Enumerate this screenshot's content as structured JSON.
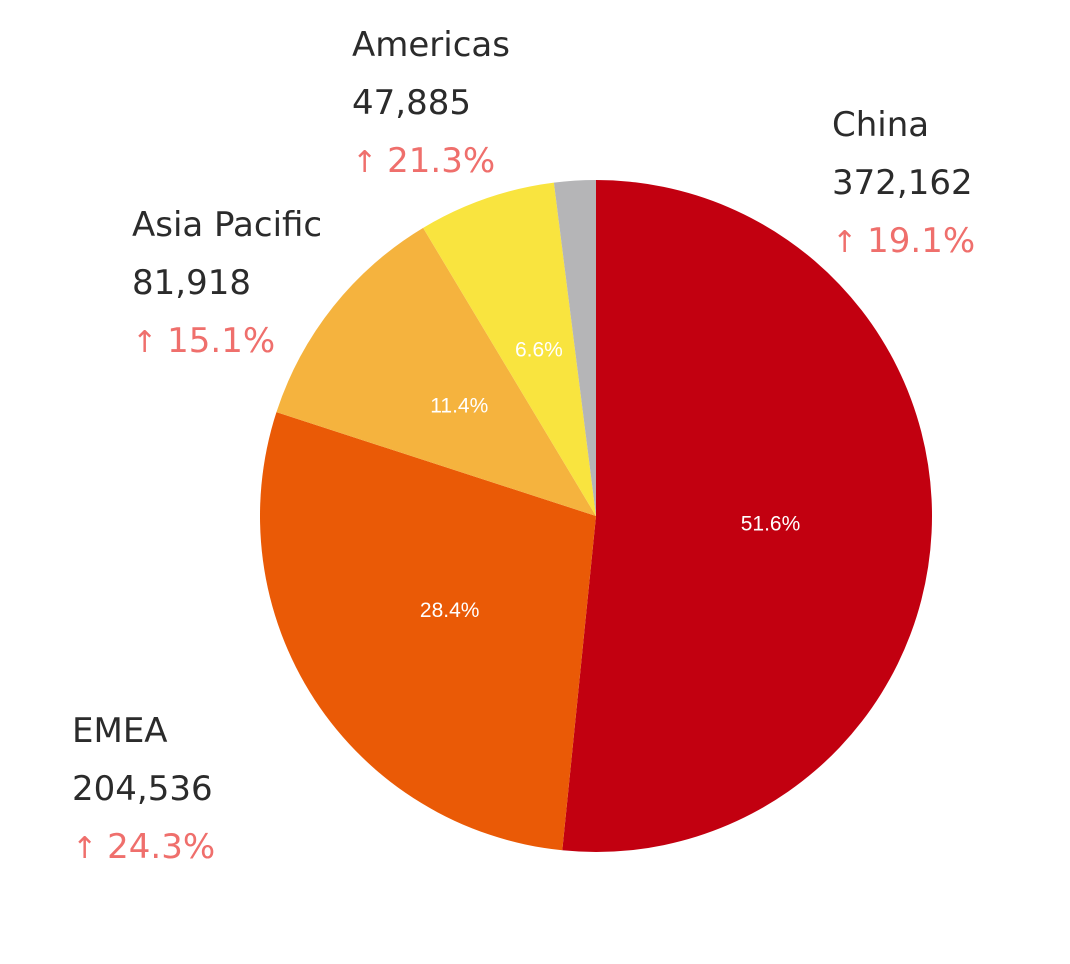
{
  "chart_data": {
    "type": "pie",
    "slices": [
      {
        "name": "China",
        "value": 372162,
        "percent": 51.6,
        "percent_label": "51.6%",
        "change": "19.1%",
        "color": "#c20010"
      },
      {
        "name": "EMEA",
        "value": 204536,
        "percent": 28.4,
        "percent_label": "28.4%",
        "change": "24.3%",
        "color": "#ea5a06"
      },
      {
        "name": "Asia Pacific",
        "value": 81918,
        "percent": 11.4,
        "percent_label": "11.4%",
        "change": "15.1%",
        "color": "#f5b33e"
      },
      {
        "name": "Americas",
        "value": 47885,
        "percent": 6.6,
        "percent_label": "6.6%",
        "change": "21.3%",
        "color": "#f9e43f"
      },
      {
        "name": "",
        "value": null,
        "percent": 2.0,
        "percent_label": "",
        "change": "",
        "color": "#b5b5b7"
      }
    ],
    "start_angle": "12 o'clock, clockwise"
  },
  "callouts": {
    "china": {
      "name": "China",
      "value": "372,162",
      "change": "19.1%"
    },
    "emea": {
      "name": "EMEA",
      "value": "204,536",
      "change": "24.3%"
    },
    "asia_pacific": {
      "name": "Asia Pacific",
      "value": "81,918",
      "change": "15.1%"
    },
    "americas": {
      "name": "Americas",
      "value": "47,885",
      "change": "21.3%"
    }
  },
  "icons": {
    "increase": "arrow-up-icon"
  }
}
